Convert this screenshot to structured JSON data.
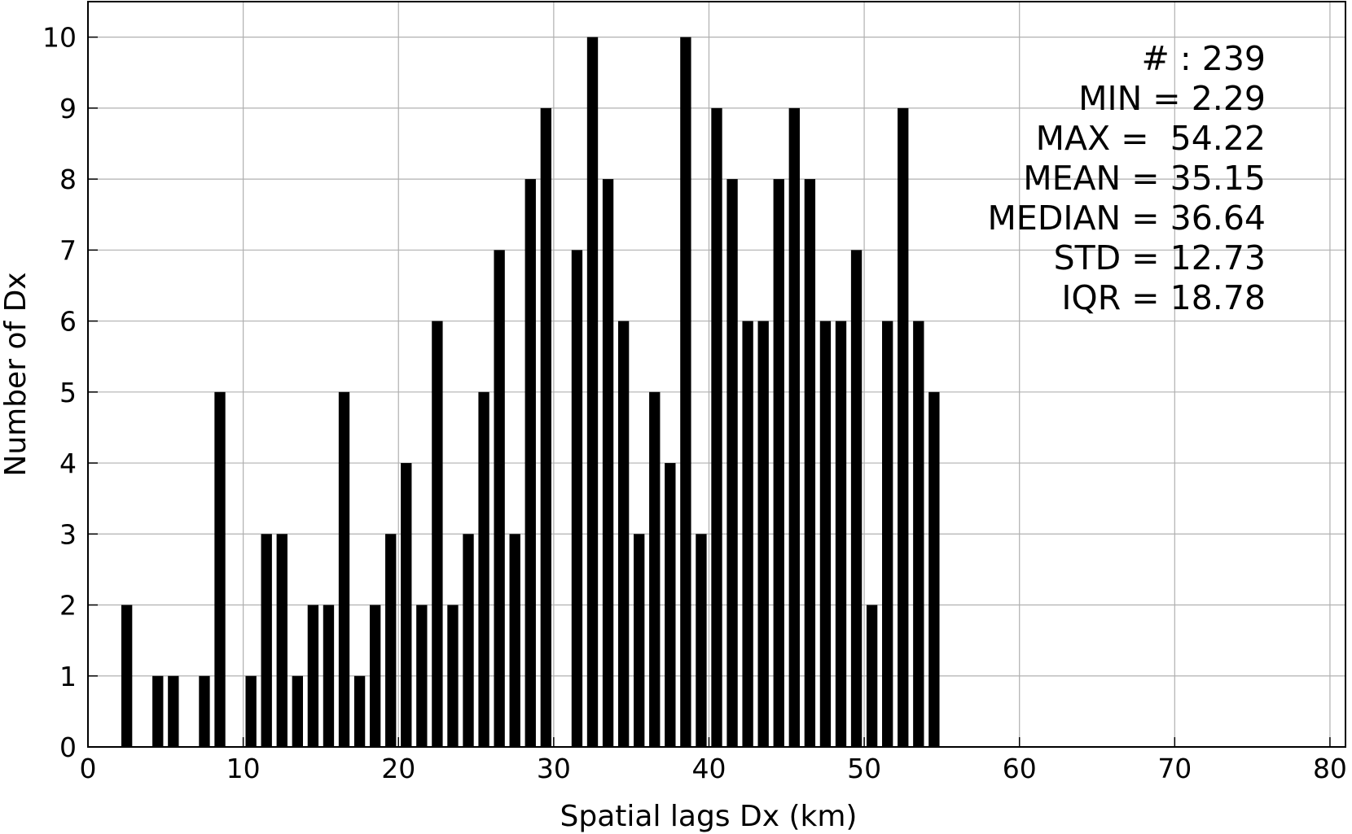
{
  "chart_data": {
    "type": "bar",
    "title": "",
    "xlabel": "Spatial lags Dx (km)",
    "ylabel": "Number of Dx",
    "xlim": [
      0,
      81
    ],
    "ylim": [
      0,
      10.5
    ],
    "xticks": [
      0,
      10,
      20,
      30,
      40,
      50,
      60,
      70,
      80
    ],
    "yticks": [
      0,
      1,
      2,
      3,
      4,
      5,
      6,
      7,
      8,
      9,
      10
    ],
    "grid": true,
    "bar_color": "#000000",
    "bar_width": 0.7,
    "x": [
      2.5,
      4.5,
      5.5,
      7.5,
      8.5,
      10.5,
      11.5,
      12.5,
      13.5,
      14.5,
      15.5,
      16.5,
      17.5,
      18.5,
      19.5,
      20.5,
      21.5,
      22.5,
      23.5,
      24.5,
      25.5,
      26.5,
      27.5,
      28.5,
      29.5,
      31.5,
      32.5,
      33.5,
      34.5,
      35.5,
      36.5,
      37.5,
      38.5,
      39.5,
      40.5,
      41.5,
      42.5,
      43.5,
      44.5,
      45.5,
      46.5,
      47.5,
      48.5,
      49.5,
      50.5,
      51.5,
      52.5,
      53.5,
      54.5
    ],
    "values": [
      2,
      1,
      1,
      1,
      5,
      1,
      3,
      3,
      1,
      2,
      2,
      5,
      1,
      2,
      3,
      4,
      2,
      6,
      2,
      3,
      5,
      7,
      3,
      8,
      9,
      7,
      10,
      8,
      6,
      3,
      5,
      4,
      10,
      3,
      9,
      8,
      6,
      6,
      8,
      9,
      8,
      6,
      6,
      7,
      2,
      6,
      9,
      6,
      5
    ],
    "stats_box": {
      "position": "top-right",
      "lines": [
        "# : 239",
        "MIN = 2.29",
        "MAX =  54.22",
        "MEAN = 35.15",
        "MEDIAN = 36.64",
        "STD = 12.73",
        "IQR = 18.78"
      ]
    }
  }
}
